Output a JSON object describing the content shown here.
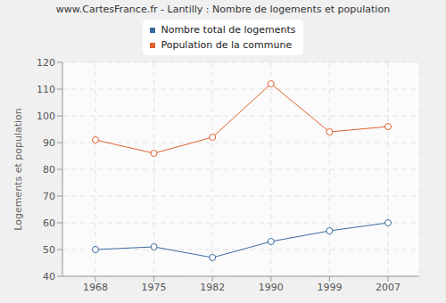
{
  "chart_data": {
    "type": "line",
    "title": "www.CartesFrance.fr - Lantilly : Nombre de logements et population",
    "y_label": "Logements et population",
    "categories": [
      "1968",
      "1975",
      "1982",
      "1990",
      "1999",
      "2007"
    ],
    "series": [
      {
        "name": "Nombre total de logements",
        "color": "#3b6aa0",
        "values": [
          50,
          51,
          47,
          53,
          57,
          60
        ],
        "marker": "circle"
      },
      {
        "name": "Population de la commune",
        "color": "#e0622f",
        "values": [
          91,
          86,
          92,
          112,
          94,
          96
        ],
        "marker": "circle"
      }
    ],
    "ylim": [
      40,
      120
    ],
    "yticks": [
      40,
      50,
      60,
      70,
      80,
      90,
      100,
      110,
      120
    ],
    "grid": true,
    "legend": "top"
  }
}
